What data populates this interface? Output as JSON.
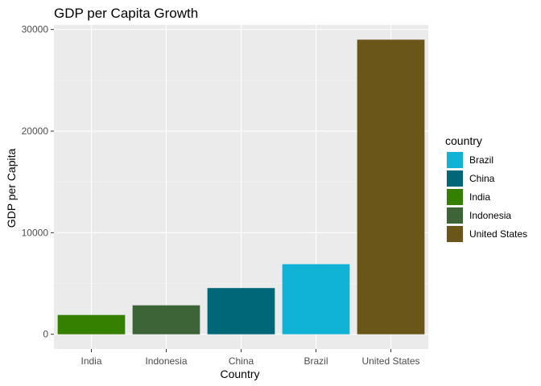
{
  "chart_data": {
    "type": "bar",
    "title": "GDP per Capita Growth",
    "xlabel": "Country",
    "ylabel": "GDP per Capita",
    "categories": [
      "India",
      "Indonesia",
      "China",
      "Brazil",
      "United States"
    ],
    "values": [
      1900,
      2850,
      4550,
      6900,
      29000
    ],
    "ylim": [
      -1450,
      30450
    ],
    "yticks": [
      0,
      10000,
      20000,
      30000
    ],
    "ytick_labels": [
      "0",
      "10000",
      "20000",
      "30000"
    ],
    "fill_by": "country",
    "colors": {
      "Brazil": "#10b3d6",
      "China": "#006778",
      "India": "#358000",
      "Indonesia": "#3c6436",
      "United States": "#6b5619"
    },
    "panel_background": "#ebebeb",
    "grid": true,
    "legend": {
      "title": "country",
      "placement": "right",
      "entries": [
        "Brazil",
        "China",
        "India",
        "Indonesia",
        "United States"
      ]
    }
  }
}
